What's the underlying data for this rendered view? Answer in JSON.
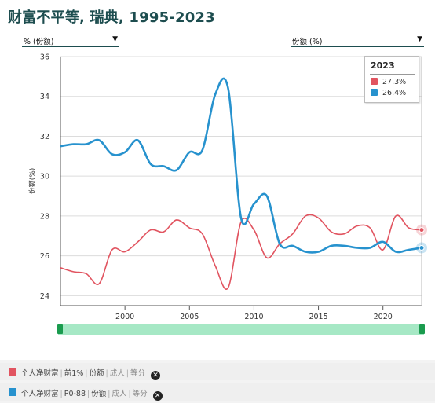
{
  "title": "财富不平等, 瑞典, 1995-2023",
  "selectors": {
    "left": "% (份额)",
    "right": "份额 (%)"
  },
  "tooltip": {
    "year": "2023",
    "values": [
      "27.3%",
      "26.4%"
    ]
  },
  "legend": [
    {
      "name": "个人净财富",
      "group": "前1%",
      "metric": "份额",
      "pop": "成人",
      "split": "等分"
    },
    {
      "name": "个人净财富",
      "group": "P0-88",
      "metric": "份额",
      "pop": "成人",
      "split": "等分"
    }
  ],
  "colors": {
    "top1": "#e15460",
    "p0_88": "#2792ce",
    "slider": "#a6e8c5",
    "slider_handle": "#1a9b4e",
    "title": "#1d4d4f"
  },
  "icons": {
    "dropdown": "triangle-down-icon",
    "remove": "close-circle-icon"
  },
  "chart_data": {
    "type": "line",
    "title": "财富不平等, 瑞典, 1995-2023",
    "ylabel": "份额(%)",
    "xlabel": "",
    "xlim": [
      1995,
      2023
    ],
    "ylim": [
      23.5,
      36
    ],
    "y_ticks": [
      24,
      26,
      28,
      30,
      32,
      34,
      36
    ],
    "x_ticks": [
      2000,
      2005,
      2010,
      2015,
      2020
    ],
    "grid": "horizontal",
    "series": [
      {
        "name": "个人净财富|前1%|份额|成人|等分",
        "color": "#e15460",
        "x": [
          1995,
          1996,
          1997,
          1998,
          1999,
          2000,
          2001,
          2002,
          2003,
          2004,
          2005,
          2006,
          2007,
          2008,
          2009,
          2010,
          2011,
          2012,
          2013,
          2014,
          2015,
          2016,
          2017,
          2018,
          2019,
          2020,
          2021,
          2022,
          2023
        ],
        "y": [
          25.4,
          25.2,
          25.1,
          24.6,
          26.3,
          26.2,
          26.7,
          27.3,
          27.2,
          27.8,
          27.4,
          27.1,
          25.5,
          24.4,
          27.7,
          27.3,
          25.9,
          26.6,
          27.1,
          28.0,
          27.9,
          27.2,
          27.1,
          27.5,
          27.4,
          26.3,
          28.0,
          27.4,
          27.3
        ]
      },
      {
        "name": "个人净财富|P0-88|份额|成人|等分",
        "color": "#2792ce",
        "x": [
          1995,
          1996,
          1997,
          1998,
          1999,
          2000,
          2001,
          2002,
          2003,
          2004,
          2005,
          2006,
          2007,
          2008,
          2009,
          2010,
          2011,
          2012,
          2013,
          2014,
          2015,
          2016,
          2017,
          2018,
          2019,
          2020,
          2021,
          2022,
          2023
        ],
        "y": [
          31.5,
          31.6,
          31.6,
          31.8,
          31.1,
          31.2,
          31.8,
          30.6,
          30.5,
          30.3,
          31.2,
          31.3,
          34.1,
          34.4,
          27.9,
          28.6,
          29.0,
          26.6,
          26.5,
          26.2,
          26.2,
          26.5,
          26.5,
          26.4,
          26.4,
          26.7,
          26.2,
          26.3,
          26.4
        ]
      }
    ]
  }
}
